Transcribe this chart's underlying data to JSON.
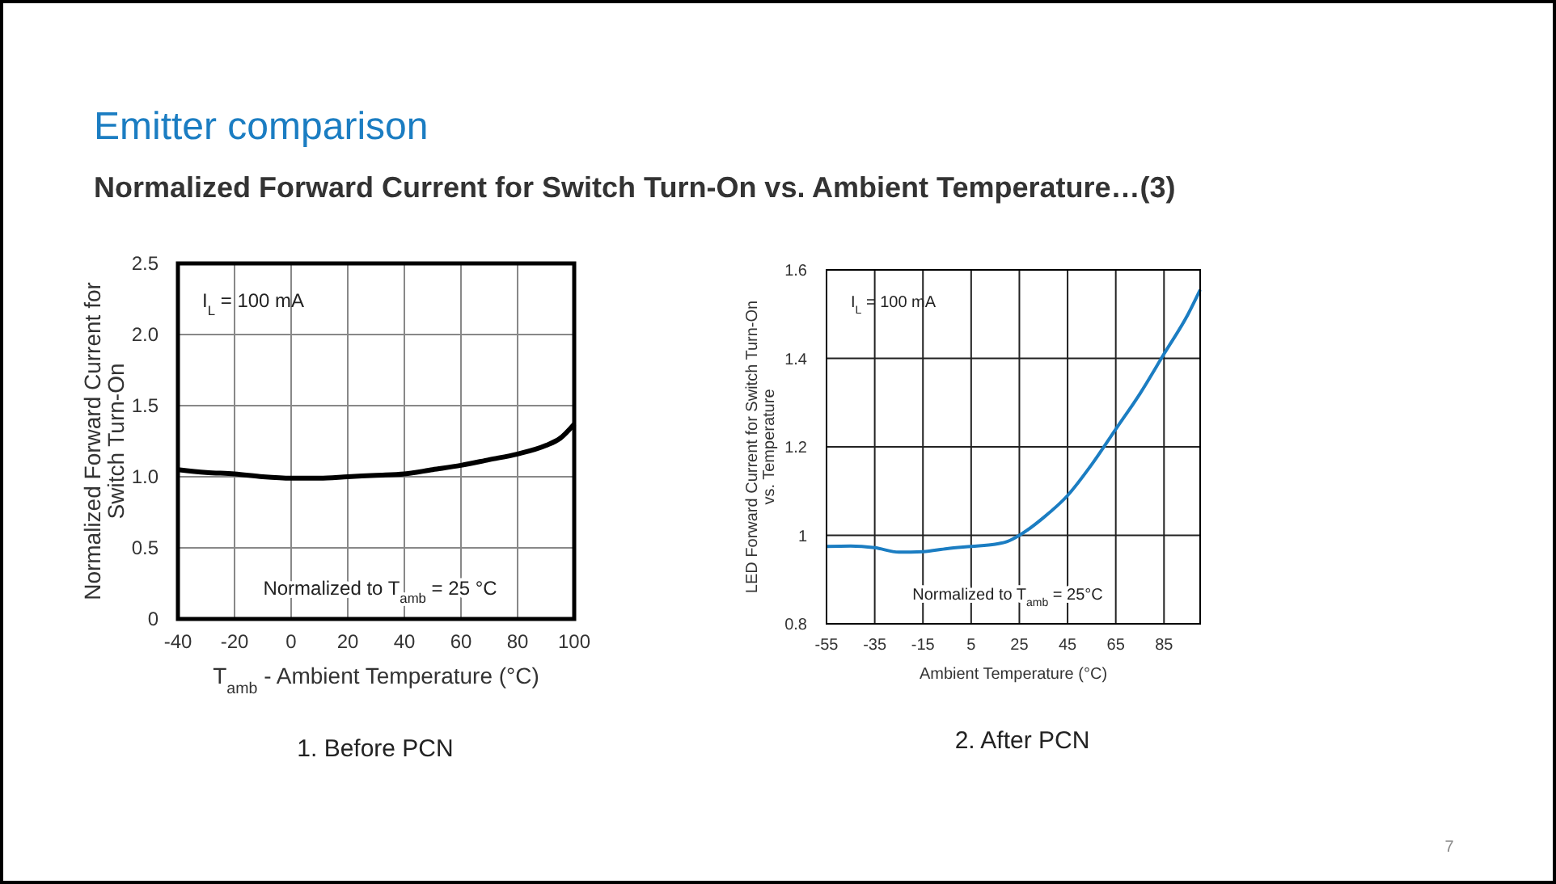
{
  "chart_data": [
    {
      "type": "line",
      "title": "Emitter comparison",
      "subtitle": "Normalized Forward Current for Switch Turn-On vs. Ambient Temperature…(3)",
      "xlabel": "T$_{amb}$ - Ambient Temperature (°C)",
      "ylabel": "Normalized Forward Current for Switch Turn-On",
      "annotations": [
        "I$_{L}$ = 100 mA",
        "Normalized to T$_{amb}$ = 25 °C",
        "1. Before PCN"
      ],
      "x": [
        -40,
        -30,
        -20,
        -10,
        0,
        10,
        20,
        30,
        40,
        50,
        60,
        70,
        80,
        90,
        95,
        100
      ],
      "series": [
        {
          "color": "#000000",
          "values": [
            1.05,
            1.03,
            1.02,
            1.0,
            0.99,
            0.99,
            1.0,
            1.01,
            1.02,
            1.05,
            1.08,
            1.12,
            1.16,
            1.22,
            1.27,
            1.37
          ]
        }
      ],
      "xlim": [
        -40,
        100
      ],
      "xticks": [
        -40,
        -20,
        0,
        20,
        40,
        60,
        80,
        100
      ],
      "ylim": [
        0,
        2.5
      ],
      "yticks": [
        0,
        0.5,
        {
          "value": 1,
          "label": "1.0"
        },
        1.5,
        {
          "value": 2,
          "label": "2.0"
        },
        2.5
      ],
      "grid": true,
      "marker": "none",
      "line_style": "solid"
    },
    {
      "type": "line",
      "xlabel": "Ambient Temperature (°C)",
      "ylabel": "LED Forward Current for Switch Turn-On vs. Temperature",
      "annotations": [
        "I$_{L}$ = 100 mA",
        "Normalized to T$_{amb}$ = 25°C",
        "2. After PCN",
        "7"
      ],
      "x": [
        -55,
        -45,
        -35,
        -25,
        -15,
        -5,
        5,
        15,
        20,
        25,
        35,
        45,
        55,
        65,
        75,
        85,
        95,
        100
      ],
      "series": [
        {
          "color": "#1b7dc2",
          "values": [
            0.975,
            0.976,
            0.972,
            0.962,
            0.963,
            0.97,
            0.975,
            0.98,
            0.986,
            1.0,
            1.04,
            1.09,
            1.16,
            1.24,
            1.32,
            1.41,
            1.5,
            1.555
          ]
        }
      ],
      "xlim": [
        -55,
        100
      ],
      "xticks": [
        -55,
        -35,
        -15,
        5,
        25,
        45,
        65,
        85
      ],
      "ylim": [
        0.8,
        1.6
      ],
      "yticks": [
        0.8,
        1,
        1.2,
        1.4,
        1.6
      ],
      "grid": true,
      "marker": "none",
      "line_style": "solid"
    }
  ]
}
